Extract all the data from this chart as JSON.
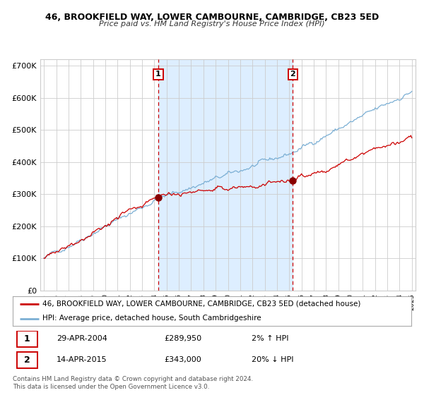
{
  "title": "46, BROOKFIELD WAY, LOWER CAMBOURNE, CAMBRIDGE, CB23 5ED",
  "subtitle": "Price paid vs. HM Land Registry's House Price Index (HPI)",
  "legend_line1": "46, BROOKFIELD WAY, LOWER CAMBOURNE, CAMBRIDGE, CB23 5ED (detached house)",
  "legend_line2": "HPI: Average price, detached house, South Cambridgeshire",
  "sale1_date": "29-APR-2004",
  "sale1_price": 289950,
  "sale1_pct": "2% ↑ HPI",
  "sale2_date": "14-APR-2015",
  "sale2_price": 343000,
  "sale2_pct": "20% ↓ HPI",
  "footer": "Contains HM Land Registry data © Crown copyright and database right 2024.\nThis data is licensed under the Open Government Licence v3.0.",
  "hpi_color": "#7bafd4",
  "price_color": "#cc0000",
  "dot_color": "#880000",
  "vline_color": "#cc0000",
  "shade_color": "#ddeeff",
  "background_color": "#ffffff",
  "grid_color": "#cccccc",
  "ylim": [
    0,
    720000
  ],
  "start_year": 1995,
  "end_year": 2025,
  "sale1_year": 2004.32,
  "sale2_year": 2015.29
}
